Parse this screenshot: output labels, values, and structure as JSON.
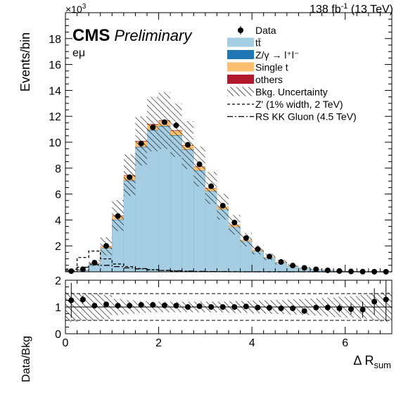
{
  "header": {
    "exponent_base": "×10",
    "exponent_power": "3",
    "lumi": "138 fb",
    "lumi_sup": "-1",
    "energy": " (13 TeV)",
    "cms": "CMS",
    "preliminary": "Preliminary",
    "channel": "eμ"
  },
  "legend": {
    "entries": [
      {
        "label": "Data",
        "kind": "marker"
      },
      {
        "label": "tt̄",
        "kind": "fill",
        "color": "#a6cee3"
      },
      {
        "label": "Z/γ → l⁺l⁻",
        "kind": "fill",
        "color": "#1f78b4"
      },
      {
        "label": "Single t",
        "kind": "fill",
        "color": "#fdbf6f"
      },
      {
        "label": "others",
        "kind": "fill",
        "color": "#b2182b"
      },
      {
        "label": "Bkg. Uncertainty",
        "kind": "hatch"
      },
      {
        "label": "Z' (1% width, 2 TeV)",
        "kind": "dashed"
      },
      {
        "label": "RS KK Gluon (4.5 TeV)",
        "kind": "dashdot"
      }
    ]
  },
  "colors": {
    "ttbar": "#a6cee3",
    "dy": "#1f78b4",
    "single_t": "#fdbf6f",
    "others": "#b2182b",
    "data": "#000000"
  },
  "chart_data": [
    {
      "type": "bar",
      "panel": "main",
      "ylabel": "Events/bin",
      "xlim": [
        0,
        7
      ],
      "ylim": [
        0,
        20000
      ],
      "yticks": [
        2000,
        4000,
        6000,
        8000,
        10000,
        12000,
        14000,
        16000,
        18000
      ],
      "ytick_labels": [
        "2",
        "4",
        "6",
        "8",
        "10",
        "12",
        "14",
        "16",
        "18"
      ],
      "xticks": [
        0,
        2,
        4,
        6
      ],
      "bin_edges": [
        0,
        0.25,
        0.5,
        0.75,
        1.0,
        1.25,
        1.5,
        1.75,
        2.0,
        2.25,
        2.5,
        2.75,
        3.0,
        3.25,
        3.5,
        3.75,
        4.0,
        4.25,
        4.5,
        4.75,
        5.0,
        5.25,
        5.5,
        5.75,
        6.0,
        6.25,
        6.5,
        6.75,
        7.0
      ],
      "series": [
        {
          "name": "tt̄",
          "values": [
            30,
            130,
            600,
            1800,
            4000,
            7000,
            9600,
            10900,
            11200,
            10500,
            9400,
            7800,
            6200,
            4800,
            3450,
            2350,
            1600,
            1080,
            700,
            460,
            290,
            180,
            115,
            70,
            40,
            20,
            10,
            5
          ]
        },
        {
          "name": "Z/γ → l⁺l⁻",
          "values": [
            5,
            10,
            15,
            20,
            30,
            35,
            40,
            40,
            40,
            35,
            30,
            25,
            20,
            15,
            10,
            8,
            6,
            4,
            3,
            2,
            1,
            1,
            1,
            0,
            0,
            0,
            0,
            0
          ]
        },
        {
          "name": "Single t",
          "values": [
            5,
            15,
            50,
            130,
            280,
            380,
            420,
            420,
            400,
            360,
            320,
            270,
            230,
            190,
            150,
            110,
            80,
            60,
            40,
            30,
            20,
            15,
            10,
            6,
            4,
            2,
            1,
            1
          ]
        },
        {
          "name": "others",
          "values": [
            2,
            5,
            10,
            20,
            30,
            40,
            40,
            40,
            40,
            35,
            30,
            25,
            20,
            15,
            12,
            9,
            6,
            4,
            3,
            2,
            1,
            1,
            1,
            0,
            0,
            0,
            0,
            0
          ]
        },
        {
          "name": "Bkg. Uncertainty",
          "values": [
            15,
            60,
            250,
            700,
            1200,
            1600,
            1900,
            2100,
            2200,
            2050,
            1850,
            1550,
            1250,
            1000,
            750,
            520,
            360,
            250,
            170,
            110,
            70,
            45,
            30,
            18,
            10,
            6,
            3,
            2
          ]
        },
        {
          "name": "Data",
          "values": [
            50,
            200,
            700,
            2000,
            4300,
            7300,
            9900,
            11150,
            11550,
            11300,
            9800,
            8300,
            6600,
            5100,
            3800,
            2600,
            1750,
            1180,
            760,
            480,
            300,
            190,
            110,
            60,
            25,
            12,
            7,
            3
          ]
        },
        {
          "name": "Z' (1% width, 2 TeV)",
          "values": [
            200,
            1100,
            1600,
            1000,
            600,
            400,
            250,
            150,
            100,
            60,
            40,
            20,
            10,
            5,
            2,
            0,
            0,
            0,
            0,
            0,
            0,
            0,
            0,
            0,
            0,
            0,
            0,
            0
          ]
        },
        {
          "name": "RS KK Gluon (4.5 TeV)",
          "values": [
            100,
            350,
            550,
            500,
            400,
            300,
            220,
            160,
            110,
            80,
            50,
            30,
            20,
            10,
            5,
            2,
            0,
            0,
            0,
            0,
            0,
            0,
            0,
            0,
            0,
            0,
            0,
            0
          ]
        }
      ]
    },
    {
      "type": "scatter",
      "panel": "ratio",
      "xlabel": "Δ R",
      "xlabel_sub": "sum",
      "ylabel": "Data/Bkg",
      "xlim": [
        0,
        7
      ],
      "ylim": [
        0,
        2
      ],
      "yticks": [
        0,
        1,
        2
      ],
      "xticks": [
        0,
        2,
        4,
        6
      ],
      "xtick_labels": [
        "0",
        "2",
        "4",
        "6"
      ],
      "reference_lines": [
        0.5,
        1.0,
        1.5
      ],
      "x": [
        0.125,
        0.375,
        0.625,
        0.875,
        1.125,
        1.375,
        1.625,
        1.875,
        2.125,
        2.375,
        2.625,
        2.875,
        3.125,
        3.375,
        3.625,
        3.875,
        4.125,
        4.375,
        4.625,
        4.875,
        5.125,
        5.375,
        5.625,
        5.875,
        6.125,
        6.375,
        6.625,
        6.875
      ],
      "y": [
        1.25,
        1.28,
        1.05,
        1.1,
        1.05,
        1.05,
        1.08,
        1.08,
        1.06,
        1.05,
        1.0,
        1.03,
        1.0,
        1.0,
        1.0,
        1.02,
        0.98,
        0.97,
        0.95,
        0.95,
        0.85,
        0.98,
        0.98,
        0.95,
        0.92,
        0.9,
        1.2,
        1.28
      ],
      "yerr": [
        0.65,
        0.15,
        0.06,
        0.03,
        0.02,
        0.02,
        0.02,
        0.02,
        0.02,
        0.02,
        0.02,
        0.02,
        0.02,
        0.02,
        0.03,
        0.03,
        0.03,
        0.04,
        0.05,
        0.06,
        0.07,
        0.09,
        0.12,
        0.15,
        0.2,
        0.3,
        0.5,
        0.8
      ],
      "unc_band": [
        0.55,
        0.5,
        0.5,
        0.45,
        0.3,
        0.25,
        0.22,
        0.2,
        0.2,
        0.2,
        0.2,
        0.2,
        0.2,
        0.2,
        0.22,
        0.22,
        0.24,
        0.25,
        0.26,
        0.28,
        0.3,
        0.32,
        0.35,
        0.38,
        0.4,
        0.45,
        0.5,
        0.55
      ]
    }
  ]
}
